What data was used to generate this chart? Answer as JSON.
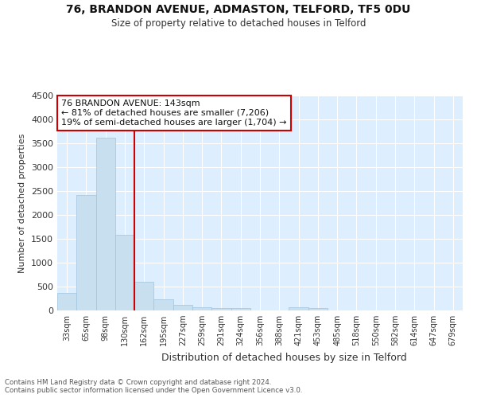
{
  "title1": "76, BRANDON AVENUE, ADMASTON, TELFORD, TF5 0DU",
  "title2": "Size of property relative to detached houses in Telford",
  "xlabel": "Distribution of detached houses by size in Telford",
  "ylabel": "Number of detached properties",
  "categories": [
    "33sqm",
    "65sqm",
    "98sqm",
    "130sqm",
    "162sqm",
    "195sqm",
    "227sqm",
    "259sqm",
    "291sqm",
    "324sqm",
    "356sqm",
    "388sqm",
    "421sqm",
    "453sqm",
    "485sqm",
    "518sqm",
    "550sqm",
    "582sqm",
    "614sqm",
    "647sqm",
    "679sqm"
  ],
  "values": [
    370,
    2420,
    3620,
    1580,
    600,
    240,
    110,
    60,
    50,
    50,
    0,
    0,
    60,
    50,
    0,
    0,
    0,
    0,
    0,
    0,
    0
  ],
  "bar_color": "#c8dff0",
  "bar_edge_color": "#a0c4e0",
  "vline_color": "#cc0000",
  "annotation_title": "76 BRANDON AVENUE: 143sqm",
  "annotation_line1": "← 81% of detached houses are smaller (7,206)",
  "annotation_line2": "19% of semi-detached houses are larger (1,704) →",
  "annotation_box_color": "#ffffff",
  "annotation_box_edge": "#cc0000",
  "ylim": [
    0,
    4500
  ],
  "yticks": [
    0,
    500,
    1000,
    1500,
    2000,
    2500,
    3000,
    3500,
    4000,
    4500
  ],
  "bg_color": "#ddeeff",
  "grid_color": "#ffffff",
  "fig_bg": "#ffffff",
  "footer_line1": "Contains HM Land Registry data © Crown copyright and database right 2024.",
  "footer_line2": "Contains public sector information licensed under the Open Government Licence v3.0."
}
